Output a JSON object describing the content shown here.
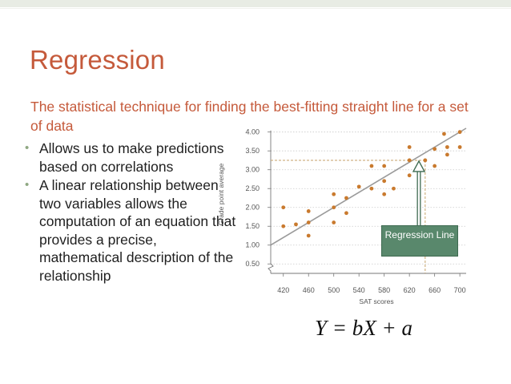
{
  "slide": {
    "title": "Regression",
    "subtitle": "The statistical technique for finding the best-fitting straight line for a set of data",
    "bullets": [
      "Allows us to make predictions based on correlations",
      "A linear relationship between two variables allows the computation of an equation that provides a precise, mathematical description of the relationship"
    ],
    "bullet_glyph": "•",
    "formula": "Y = bX + a",
    "callout": "Regression Line"
  },
  "colors": {
    "title": "#c55a3b",
    "callout_bg": "#59886c",
    "points": "#c97a2e",
    "regression_line": "#9a9a9a",
    "guide_line": "#c6a26a"
  },
  "chart_data": {
    "type": "scatter",
    "xlabel": "SAT scores",
    "ylabel": "Grade point average",
    "x_ticks": [
      420,
      460,
      500,
      540,
      580,
      620,
      660,
      700
    ],
    "x_tick_labels": [
      "420",
      "460",
      "500",
      "540",
      "580",
      "620",
      "660",
      "700"
    ],
    "y_ticks": [
      0.5,
      1.0,
      1.5,
      2.0,
      2.5,
      3.0,
      3.5,
      4.0
    ],
    "y_tick_labels": [
      "0.50",
      "1.00",
      "1.50",
      "2.00",
      "2.50",
      "3.00",
      "3.50",
      "4.00"
    ],
    "xlim": [
      400,
      710
    ],
    "ylim": [
      0.25,
      4.1
    ],
    "axis_break": true,
    "grid": "horizontal dotted",
    "points": [
      [
        420,
        2.0
      ],
      [
        420,
        1.5
      ],
      [
        440,
        1.55
      ],
      [
        460,
        1.9
      ],
      [
        460,
        1.6
      ],
      [
        460,
        1.25
      ],
      [
        500,
        2.35
      ],
      [
        500,
        2.0
      ],
      [
        500,
        1.6
      ],
      [
        520,
        1.85
      ],
      [
        520,
        2.25
      ],
      [
        540,
        2.55
      ],
      [
        560,
        3.1
      ],
      [
        560,
        2.5
      ],
      [
        580,
        3.1
      ],
      [
        580,
        2.7
      ],
      [
        580,
        2.35
      ],
      [
        595,
        2.5
      ],
      [
        620,
        3.6
      ],
      [
        620,
        3.25
      ],
      [
        620,
        2.85
      ],
      [
        645,
        3.25
      ],
      [
        660,
        3.55
      ],
      [
        660,
        3.1
      ],
      [
        675,
        3.95
      ],
      [
        680,
        3.6
      ],
      [
        680,
        3.4
      ],
      [
        700,
        4.0
      ],
      [
        700,
        3.6
      ]
    ],
    "regression_line": {
      "x": [
        400,
        710
      ],
      "y": [
        1.0,
        4.1
      ]
    },
    "guide": {
      "x": 645,
      "y": 3.25
    }
  }
}
